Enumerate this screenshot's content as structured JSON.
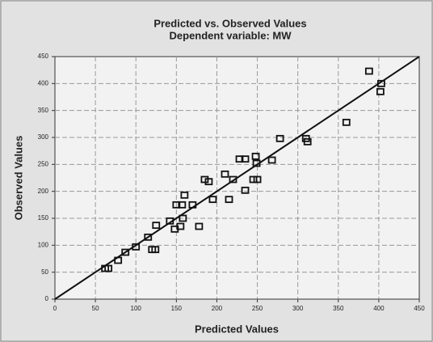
{
  "chart_data": {
    "type": "scatter",
    "title": "Predicted vs. Observed Values",
    "subtitle": "Dependent variable: MW",
    "x_label": "Predicted Values",
    "y_label": "Observed Values",
    "color": "#111111",
    "grid": true,
    "xlim": [
      0,
      450
    ],
    "ylim": [
      0,
      450
    ],
    "xticks": [
      0,
      50,
      100,
      150,
      200,
      250,
      300,
      350,
      400,
      450
    ],
    "yticks": [
      0,
      50,
      100,
      150,
      200,
      250,
      300,
      350,
      400,
      450
    ],
    "x": [
      62,
      66,
      78,
      87,
      100,
      115,
      120,
      124,
      125,
      142,
      148,
      150,
      155,
      157,
      158,
      160,
      170,
      178,
      185,
      190,
      195,
      215,
      220,
      228,
      235,
      235,
      210,
      245,
      248,
      250,
      249,
      268,
      278,
      310,
      312,
      360,
      388,
      402,
      403
    ],
    "values": [
      57,
      57,
      72,
      87,
      97,
      115,
      92,
      92,
      137,
      145,
      130,
      175,
      135,
      175,
      150,
      193,
      175,
      135,
      222,
      218,
      185,
      185,
      222,
      260,
      260,
      202,
      232,
      222,
      265,
      222,
      252,
      258,
      298,
      298,
      292,
      328,
      423,
      385,
      400
    ],
    "line": {
      "x": [
        0,
        450
      ],
      "values": [
        0,
        450
      ]
    }
  }
}
